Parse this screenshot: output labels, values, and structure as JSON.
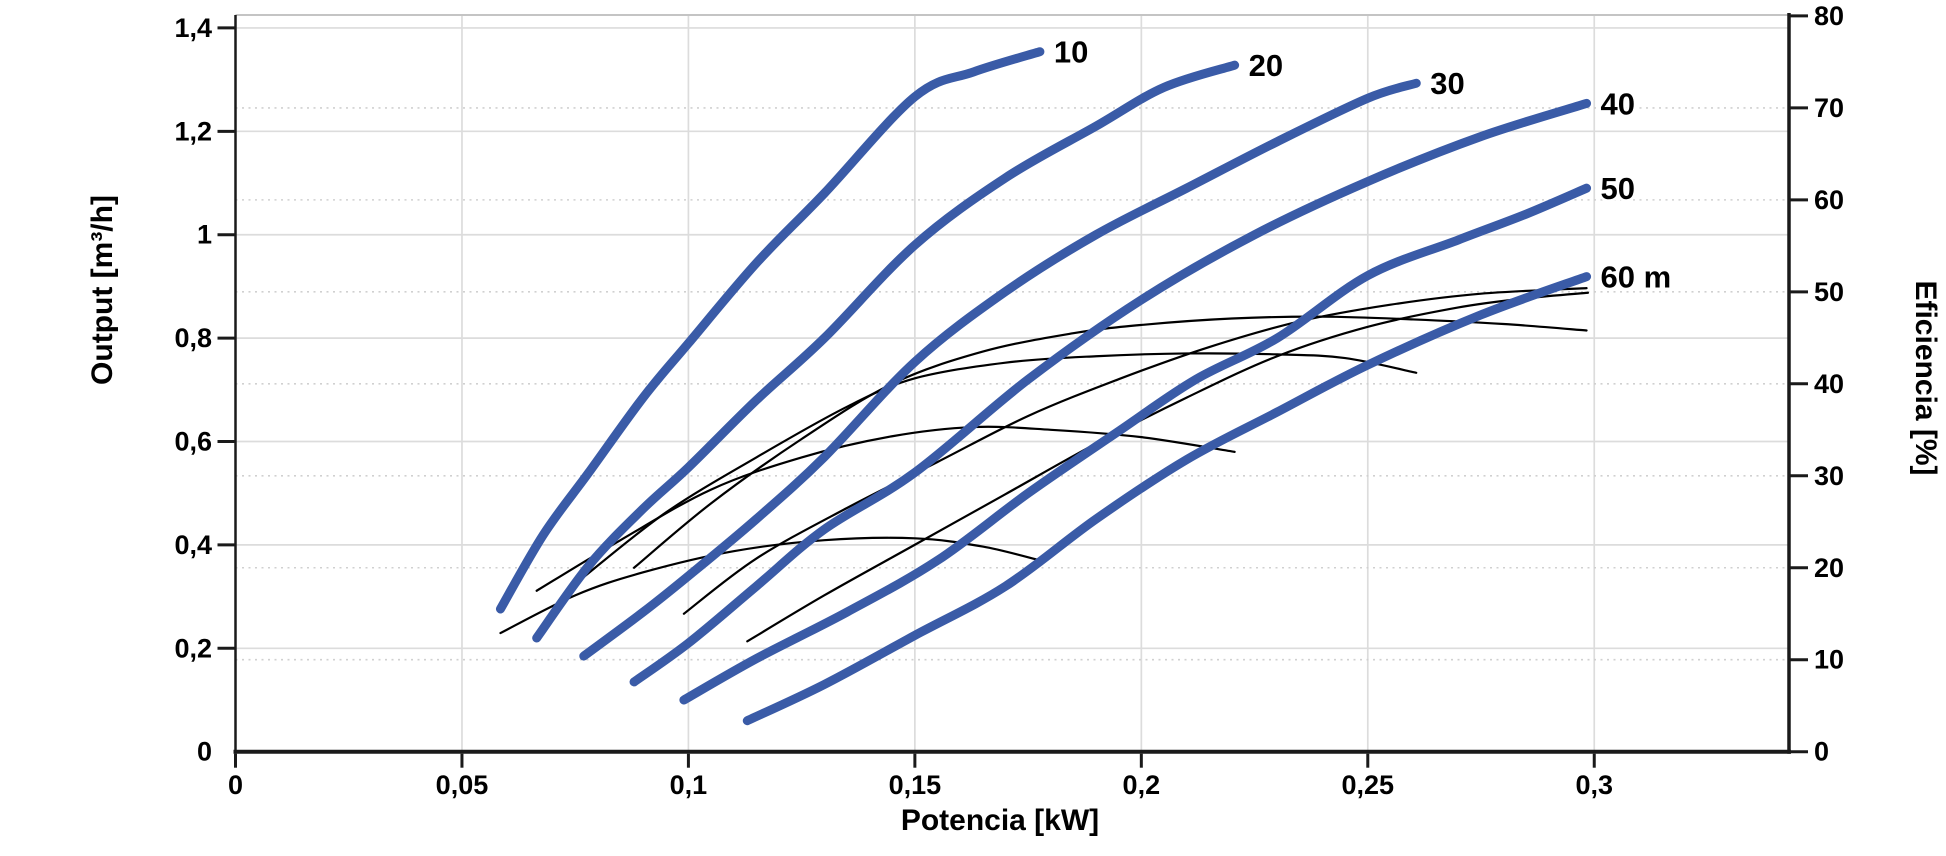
{
  "styles": {
    "accent_blue": "#3a5ba7",
    "curve_black": "#000000",
    "grid_solid": "#dcdcdc",
    "grid_dotted": "#d0d0d0",
    "axis_dark": "#1a1a1a",
    "frame_top_gray": "#c4c4c4",
    "background": "#ffffff",
    "label_color": "#000000"
  },
  "chart_data": {
    "type": "line",
    "title": "",
    "xlabel": "Potencia [kW]",
    "ylabel_left": "Output [m³/h]",
    "ylabel_right": "Eficiencia [%]",
    "xlim": [
      0,
      0.343
    ],
    "ylim_left": [
      0,
      1.425
    ],
    "ylim_right": [
      0,
      80.1
    ],
    "grid": "solid light-gray verticals every 0.05 kW and horizontals every 0.2 m3/h; dotted horizontals every 10% efficiency",
    "legend_position": "curve-end labels",
    "x_ticks": [
      0,
      0.05,
      0.1,
      0.15,
      0.2,
      0.25,
      0.3
    ],
    "x_tick_labels": [
      "0",
      "0,05",
      "0,1",
      "0,15",
      "0,2",
      "0,25",
      "0,3"
    ],
    "y_left_ticks": [
      0,
      0.2,
      0.4,
      0.6,
      0.8,
      1.0,
      1.2,
      1.4
    ],
    "y_left_tick_labels": [
      "0",
      "0,2",
      "0,4",
      "0,6",
      "0,8",
      "1",
      "1,2",
      "1,4"
    ],
    "y_right_ticks": [
      0,
      10,
      20,
      30,
      40,
      50,
      60,
      70,
      80
    ],
    "y_right_tick_labels": [
      "0",
      "10",
      "20",
      "30",
      "40",
      "50",
      "60",
      "70",
      "80"
    ],
    "x_grid_values": [
      0.05,
      0.1,
      0.15,
      0.2,
      0.25,
      0.3
    ],
    "y_left_grid_values": [
      0.2,
      0.4,
      0.6,
      0.8,
      1.0,
      1.2,
      1.4
    ],
    "y_right_grid_values": [
      10,
      20,
      30,
      40,
      50,
      60,
      70
    ],
    "series": [
      {
        "name": "head-10m-output",
        "label": "10",
        "axis": "left",
        "style": "blue-thick",
        "points": [
          [
            0.0585,
            0.276
          ],
          [
            0.068,
            0.42
          ],
          [
            0.078,
            0.54
          ],
          [
            0.09,
            0.685
          ],
          [
            0.1,
            0.79
          ],
          [
            0.115,
            0.945
          ],
          [
            0.13,
            1.08
          ],
          [
            0.15,
            1.267
          ],
          [
            0.163,
            1.315
          ],
          [
            0.1776,
            1.354
          ]
        ]
      },
      {
        "name": "head-20m-output",
        "label": "20",
        "axis": "left",
        "style": "blue-thick",
        "points": [
          [
            0.0665,
            0.22
          ],
          [
            0.078,
            0.36
          ],
          [
            0.09,
            0.47
          ],
          [
            0.1,
            0.55
          ],
          [
            0.115,
            0.68
          ],
          [
            0.13,
            0.8
          ],
          [
            0.15,
            0.98
          ],
          [
            0.17,
            1.11
          ],
          [
            0.19,
            1.21
          ],
          [
            0.205,
            1.285
          ],
          [
            0.2206,
            1.328
          ]
        ]
      },
      {
        "name": "head-30m-output",
        "label": "30",
        "axis": "left",
        "style": "blue-thick",
        "points": [
          [
            0.0769,
            0.185
          ],
          [
            0.09,
            0.27
          ],
          [
            0.1,
            0.34
          ],
          [
            0.115,
            0.45
          ],
          [
            0.13,
            0.57
          ],
          [
            0.15,
            0.754
          ],
          [
            0.17,
            0.89
          ],
          [
            0.19,
            1.0
          ],
          [
            0.21,
            1.09
          ],
          [
            0.23,
            1.18
          ],
          [
            0.25,
            1.264
          ],
          [
            0.2607,
            1.293
          ]
        ]
      },
      {
        "name": "head-40m-output",
        "label": "40",
        "axis": "left",
        "style": "blue-thick",
        "points": [
          [
            0.088,
            0.135
          ],
          [
            0.1,
            0.21
          ],
          [
            0.115,
            0.32
          ],
          [
            0.13,
            0.43
          ],
          [
            0.15,
            0.54
          ],
          [
            0.175,
            0.72
          ],
          [
            0.2,
            0.874
          ],
          [
            0.225,
            1.0
          ],
          [
            0.25,
            1.103
          ],
          [
            0.275,
            1.19
          ],
          [
            0.2983,
            1.254
          ]
        ]
      },
      {
        "name": "head-50m-output",
        "label": "50",
        "axis": "left",
        "style": "blue-thick",
        "points": [
          [
            0.099,
            0.1
          ],
          [
            0.115,
            0.18
          ],
          [
            0.135,
            0.27
          ],
          [
            0.155,
            0.37
          ],
          [
            0.175,
            0.5
          ],
          [
            0.195,
            0.62
          ],
          [
            0.212,
            0.72
          ],
          [
            0.23,
            0.8
          ],
          [
            0.25,
            0.921
          ],
          [
            0.27,
            0.99
          ],
          [
            0.285,
            1.04
          ],
          [
            0.2983,
            1.09
          ]
        ]
      },
      {
        "name": "head-60m-output",
        "label": "60 m",
        "axis": "left",
        "style": "blue-thick",
        "points": [
          [
            0.113,
            0.06
          ],
          [
            0.13,
            0.13
          ],
          [
            0.15,
            0.225
          ],
          [
            0.17,
            0.32
          ],
          [
            0.19,
            0.45
          ],
          [
            0.21,
            0.565
          ],
          [
            0.23,
            0.657
          ],
          [
            0.25,
            0.748
          ],
          [
            0.275,
            0.845
          ],
          [
            0.2983,
            0.919
          ]
        ]
      },
      {
        "name": "head-10m-efficiency",
        "label": "",
        "axis": "right",
        "style": "black-thin",
        "points": [
          [
            0.0585,
            12.9
          ],
          [
            0.075,
            17
          ],
          [
            0.09,
            19.5
          ],
          [
            0.11,
            21.8
          ],
          [
            0.13,
            23
          ],
          [
            0.15,
            23.2
          ],
          [
            0.165,
            22.3
          ],
          [
            0.1776,
            20.8
          ]
        ]
      },
      {
        "name": "head-20m-efficiency",
        "label": "",
        "axis": "right",
        "style": "black-thin",
        "points": [
          [
            0.0665,
            17.5
          ],
          [
            0.085,
            23
          ],
          [
            0.105,
            28.5
          ],
          [
            0.125,
            32
          ],
          [
            0.145,
            34.3
          ],
          [
            0.163,
            35.3
          ],
          [
            0.18,
            35.0
          ],
          [
            0.2,
            34.2
          ],
          [
            0.2206,
            32.6
          ]
        ]
      },
      {
        "name": "head-30m-efficiency",
        "label": "",
        "axis": "right",
        "style": "black-thin",
        "points": [
          [
            0.0769,
            19
          ],
          [
            0.095,
            26
          ],
          [
            0.115,
            32
          ],
          [
            0.135,
            37.5
          ],
          [
            0.15,
            40.6
          ],
          [
            0.17,
            42.3
          ],
          [
            0.19,
            43.0
          ],
          [
            0.21,
            43.3
          ],
          [
            0.23,
            43.2
          ],
          [
            0.245,
            42.8
          ],
          [
            0.2607,
            41.2
          ]
        ]
      },
      {
        "name": "head-40m-efficiency",
        "label": "",
        "axis": "right",
        "style": "black-thin",
        "points": [
          [
            0.088,
            20
          ],
          [
            0.105,
            27
          ],
          [
            0.125,
            34
          ],
          [
            0.145,
            40
          ],
          [
            0.165,
            43.5
          ],
          [
            0.185,
            45.5
          ],
          [
            0.2,
            46.4
          ],
          [
            0.22,
            47.1
          ],
          [
            0.24,
            47.3
          ],
          [
            0.26,
            47.0
          ],
          [
            0.28,
            46.5
          ],
          [
            0.2983,
            45.8
          ]
        ]
      },
      {
        "name": "head-50m-efficiency",
        "label": "",
        "axis": "right",
        "style": "black-thin",
        "points": [
          [
            0.099,
            15
          ],
          [
            0.115,
            21
          ],
          [
            0.135,
            26.5
          ],
          [
            0.155,
            31.5
          ],
          [
            0.175,
            36.5
          ],
          [
            0.195,
            40.5
          ],
          [
            0.215,
            44
          ],
          [
            0.235,
            46.8
          ],
          [
            0.255,
            48.6
          ],
          [
            0.275,
            49.8
          ],
          [
            0.2983,
            50.4
          ]
        ]
      },
      {
        "name": "head-60m-efficiency",
        "label": "",
        "axis": "right",
        "style": "black-thin",
        "points": [
          [
            0.113,
            12
          ],
          [
            0.13,
            17
          ],
          [
            0.15,
            22.5
          ],
          [
            0.17,
            28
          ],
          [
            0.19,
            33.5
          ],
          [
            0.21,
            38.5
          ],
          [
            0.23,
            43
          ],
          [
            0.25,
            46.2
          ],
          [
            0.27,
            48.3
          ],
          [
            0.285,
            49.3
          ],
          [
            0.2986,
            49.9
          ]
        ]
      }
    ],
    "curve_end_labels": [
      "10",
      "20",
      "30",
      "40",
      "50",
      "60 m"
    ]
  }
}
